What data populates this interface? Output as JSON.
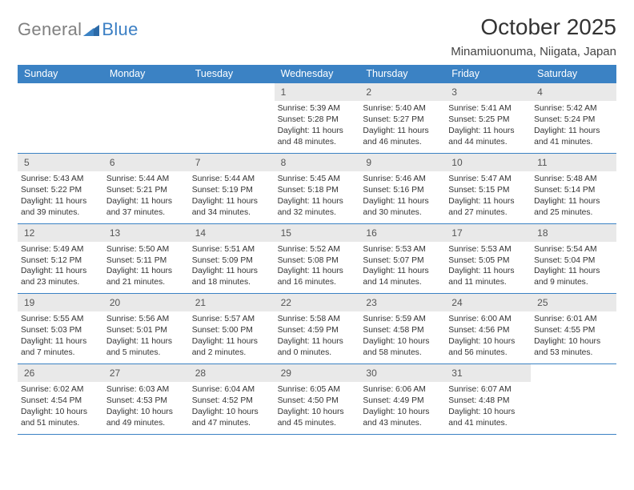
{
  "logo": {
    "text1": "General",
    "text2": "Blue"
  },
  "header": {
    "month_title": "October 2025",
    "location": "Minamiuonuma, Niigata, Japan"
  },
  "colors": {
    "header_bar": "#3b82c4",
    "daynum_bg": "#e9e9e9",
    "rule": "#3b82c4",
    "logo_gray": "#808080",
    "logo_blue": "#3b7fc4",
    "text": "#333333"
  },
  "weekdays": [
    "Sunday",
    "Monday",
    "Tuesday",
    "Wednesday",
    "Thursday",
    "Friday",
    "Saturday"
  ],
  "weeks": [
    [
      null,
      null,
      null,
      {
        "n": "1",
        "sunrise": "Sunrise: 5:39 AM",
        "sunset": "Sunset: 5:28 PM",
        "day1": "Daylight: 11 hours",
        "day2": "and 48 minutes."
      },
      {
        "n": "2",
        "sunrise": "Sunrise: 5:40 AM",
        "sunset": "Sunset: 5:27 PM",
        "day1": "Daylight: 11 hours",
        "day2": "and 46 minutes."
      },
      {
        "n": "3",
        "sunrise": "Sunrise: 5:41 AM",
        "sunset": "Sunset: 5:25 PM",
        "day1": "Daylight: 11 hours",
        "day2": "and 44 minutes."
      },
      {
        "n": "4",
        "sunrise": "Sunrise: 5:42 AM",
        "sunset": "Sunset: 5:24 PM",
        "day1": "Daylight: 11 hours",
        "day2": "and 41 minutes."
      }
    ],
    [
      {
        "n": "5",
        "sunrise": "Sunrise: 5:43 AM",
        "sunset": "Sunset: 5:22 PM",
        "day1": "Daylight: 11 hours",
        "day2": "and 39 minutes."
      },
      {
        "n": "6",
        "sunrise": "Sunrise: 5:44 AM",
        "sunset": "Sunset: 5:21 PM",
        "day1": "Daylight: 11 hours",
        "day2": "and 37 minutes."
      },
      {
        "n": "7",
        "sunrise": "Sunrise: 5:44 AM",
        "sunset": "Sunset: 5:19 PM",
        "day1": "Daylight: 11 hours",
        "day2": "and 34 minutes."
      },
      {
        "n": "8",
        "sunrise": "Sunrise: 5:45 AM",
        "sunset": "Sunset: 5:18 PM",
        "day1": "Daylight: 11 hours",
        "day2": "and 32 minutes."
      },
      {
        "n": "9",
        "sunrise": "Sunrise: 5:46 AM",
        "sunset": "Sunset: 5:16 PM",
        "day1": "Daylight: 11 hours",
        "day2": "and 30 minutes."
      },
      {
        "n": "10",
        "sunrise": "Sunrise: 5:47 AM",
        "sunset": "Sunset: 5:15 PM",
        "day1": "Daylight: 11 hours",
        "day2": "and 27 minutes."
      },
      {
        "n": "11",
        "sunrise": "Sunrise: 5:48 AM",
        "sunset": "Sunset: 5:14 PM",
        "day1": "Daylight: 11 hours",
        "day2": "and 25 minutes."
      }
    ],
    [
      {
        "n": "12",
        "sunrise": "Sunrise: 5:49 AM",
        "sunset": "Sunset: 5:12 PM",
        "day1": "Daylight: 11 hours",
        "day2": "and 23 minutes."
      },
      {
        "n": "13",
        "sunrise": "Sunrise: 5:50 AM",
        "sunset": "Sunset: 5:11 PM",
        "day1": "Daylight: 11 hours",
        "day2": "and 21 minutes."
      },
      {
        "n": "14",
        "sunrise": "Sunrise: 5:51 AM",
        "sunset": "Sunset: 5:09 PM",
        "day1": "Daylight: 11 hours",
        "day2": "and 18 minutes."
      },
      {
        "n": "15",
        "sunrise": "Sunrise: 5:52 AM",
        "sunset": "Sunset: 5:08 PM",
        "day1": "Daylight: 11 hours",
        "day2": "and 16 minutes."
      },
      {
        "n": "16",
        "sunrise": "Sunrise: 5:53 AM",
        "sunset": "Sunset: 5:07 PM",
        "day1": "Daylight: 11 hours",
        "day2": "and 14 minutes."
      },
      {
        "n": "17",
        "sunrise": "Sunrise: 5:53 AM",
        "sunset": "Sunset: 5:05 PM",
        "day1": "Daylight: 11 hours",
        "day2": "and 11 minutes."
      },
      {
        "n": "18",
        "sunrise": "Sunrise: 5:54 AM",
        "sunset": "Sunset: 5:04 PM",
        "day1": "Daylight: 11 hours",
        "day2": "and 9 minutes."
      }
    ],
    [
      {
        "n": "19",
        "sunrise": "Sunrise: 5:55 AM",
        "sunset": "Sunset: 5:03 PM",
        "day1": "Daylight: 11 hours",
        "day2": "and 7 minutes."
      },
      {
        "n": "20",
        "sunrise": "Sunrise: 5:56 AM",
        "sunset": "Sunset: 5:01 PM",
        "day1": "Daylight: 11 hours",
        "day2": "and 5 minutes."
      },
      {
        "n": "21",
        "sunrise": "Sunrise: 5:57 AM",
        "sunset": "Sunset: 5:00 PM",
        "day1": "Daylight: 11 hours",
        "day2": "and 2 minutes."
      },
      {
        "n": "22",
        "sunrise": "Sunrise: 5:58 AM",
        "sunset": "Sunset: 4:59 PM",
        "day1": "Daylight: 11 hours",
        "day2": "and 0 minutes."
      },
      {
        "n": "23",
        "sunrise": "Sunrise: 5:59 AM",
        "sunset": "Sunset: 4:58 PM",
        "day1": "Daylight: 10 hours",
        "day2": "and 58 minutes."
      },
      {
        "n": "24",
        "sunrise": "Sunrise: 6:00 AM",
        "sunset": "Sunset: 4:56 PM",
        "day1": "Daylight: 10 hours",
        "day2": "and 56 minutes."
      },
      {
        "n": "25",
        "sunrise": "Sunrise: 6:01 AM",
        "sunset": "Sunset: 4:55 PM",
        "day1": "Daylight: 10 hours",
        "day2": "and 53 minutes."
      }
    ],
    [
      {
        "n": "26",
        "sunrise": "Sunrise: 6:02 AM",
        "sunset": "Sunset: 4:54 PM",
        "day1": "Daylight: 10 hours",
        "day2": "and 51 minutes."
      },
      {
        "n": "27",
        "sunrise": "Sunrise: 6:03 AM",
        "sunset": "Sunset: 4:53 PM",
        "day1": "Daylight: 10 hours",
        "day2": "and 49 minutes."
      },
      {
        "n": "28",
        "sunrise": "Sunrise: 6:04 AM",
        "sunset": "Sunset: 4:52 PM",
        "day1": "Daylight: 10 hours",
        "day2": "and 47 minutes."
      },
      {
        "n": "29",
        "sunrise": "Sunrise: 6:05 AM",
        "sunset": "Sunset: 4:50 PM",
        "day1": "Daylight: 10 hours",
        "day2": "and 45 minutes."
      },
      {
        "n": "30",
        "sunrise": "Sunrise: 6:06 AM",
        "sunset": "Sunset: 4:49 PM",
        "day1": "Daylight: 10 hours",
        "day2": "and 43 minutes."
      },
      {
        "n": "31",
        "sunrise": "Sunrise: 6:07 AM",
        "sunset": "Sunset: 4:48 PM",
        "day1": "Daylight: 10 hours",
        "day2": "and 41 minutes."
      },
      null
    ]
  ]
}
